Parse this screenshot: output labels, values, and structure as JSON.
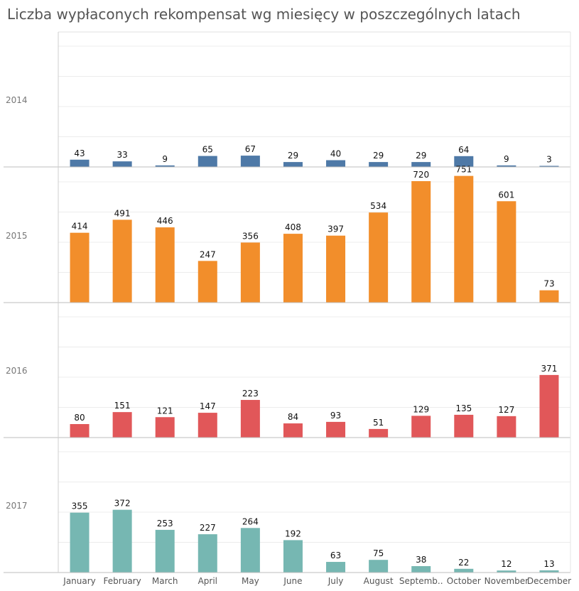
{
  "title": "Liczba wypłaconych rekompensat wg miesięcy w poszczególnych latach",
  "chart_data": {
    "type": "bar",
    "title": "Liczba wypłaconych rekompensat wg miesięcy w poszczególnych latach",
    "categories": [
      "January",
      "February",
      "March",
      "April",
      "May",
      "June",
      "July",
      "August",
      "Septemb..",
      "October",
      "November",
      "December"
    ],
    "ylim": [
      0,
      800
    ],
    "grid": true,
    "series": [
      {
        "name": "2014",
        "color": "#4e79a7",
        "values": [
          43,
          33,
          9,
          65,
          67,
          29,
          40,
          29,
          29,
          64,
          9,
          3
        ]
      },
      {
        "name": "2015",
        "color": "#f28e2b",
        "values": [
          414,
          491,
          446,
          247,
          356,
          408,
          397,
          534,
          720,
          751,
          601,
          73
        ]
      },
      {
        "name": "2016",
        "color": "#e15759",
        "values": [
          80,
          151,
          121,
          147,
          223,
          84,
          93,
          51,
          129,
          135,
          127,
          371
        ]
      },
      {
        "name": "2017",
        "color": "#76b7b2",
        "values": [
          355,
          372,
          253,
          227,
          264,
          192,
          63,
          75,
          38,
          22,
          12,
          13
        ]
      }
    ]
  }
}
